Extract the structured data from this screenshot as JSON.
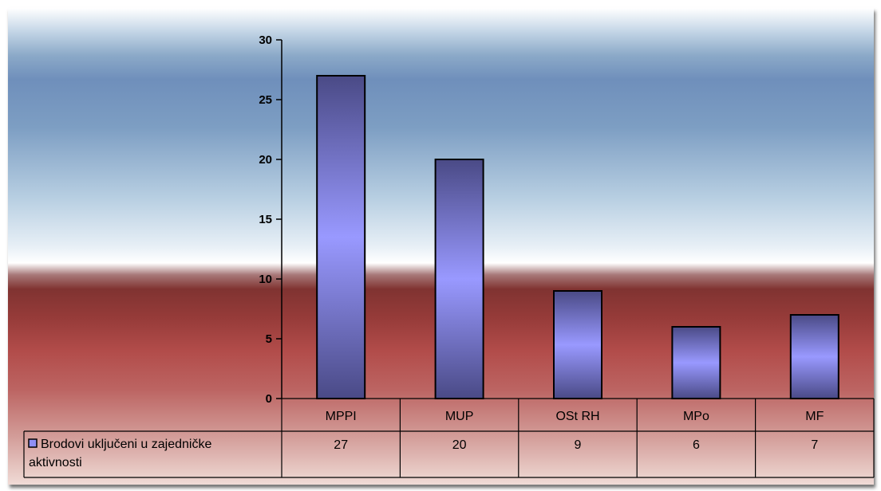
{
  "chart_data": {
    "type": "bar",
    "categories": [
      "MPPI",
      "MUP",
      "OSt RH",
      "MPo",
      "MF"
    ],
    "series": [
      {
        "name": "Brodovi uključeni u zajedničke aktivnosti",
        "name_lines": [
          "Brodovi uključeni u zajedničke",
          "aktivnosti"
        ],
        "values": [
          27,
          20,
          9,
          6,
          7
        ],
        "value_labels": [
          "27",
          "20",
          "9",
          "6",
          "7"
        ]
      }
    ],
    "ylim": [
      0,
      30
    ],
    "yticks": [
      0,
      5,
      10,
      15,
      20,
      25,
      30
    ],
    "ytick_labels": [
      "0",
      "5",
      "10",
      "15",
      "20",
      "25",
      "30"
    ],
    "grid": false,
    "data_table": true,
    "colors": {
      "bar_edge": "#4a4a86",
      "bar_center": "#9999ff",
      "legend_key": "#8f8ff5"
    }
  }
}
